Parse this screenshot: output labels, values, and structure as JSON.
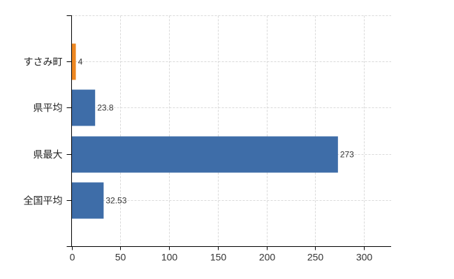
{
  "chart_data": {
    "type": "bar",
    "orientation": "horizontal",
    "title": "",
    "xlabel": "",
    "ylabel": "",
    "legend": "none",
    "grid": "dashed",
    "categories": [
      "すさみ町",
      "県平均",
      "県最大",
      "全国平均"
    ],
    "values": [
      4,
      23.8,
      273,
      32.53
    ],
    "value_labels": [
      "4",
      "23.8",
      "273",
      "32.53"
    ],
    "bar_colors": [
      "#ed8721",
      "#3e6da8",
      "#3e6da8",
      "#3e6da8"
    ],
    "x_ticks": [
      0,
      50,
      100,
      150,
      200,
      250,
      300
    ],
    "x_tick_labels": [
      "0",
      "50",
      "100",
      "150",
      "200",
      "250",
      "300"
    ],
    "xlim": [
      0,
      328
    ]
  },
  "colors": {
    "background": "#ffffff",
    "bar_blue": "#3e6da8",
    "bar_orange": "#ed8721",
    "grid": "#d9d9d9",
    "axis": "#000000",
    "tick_label": "#333333",
    "value_label": "#333333",
    "category_label": "#222222"
  }
}
